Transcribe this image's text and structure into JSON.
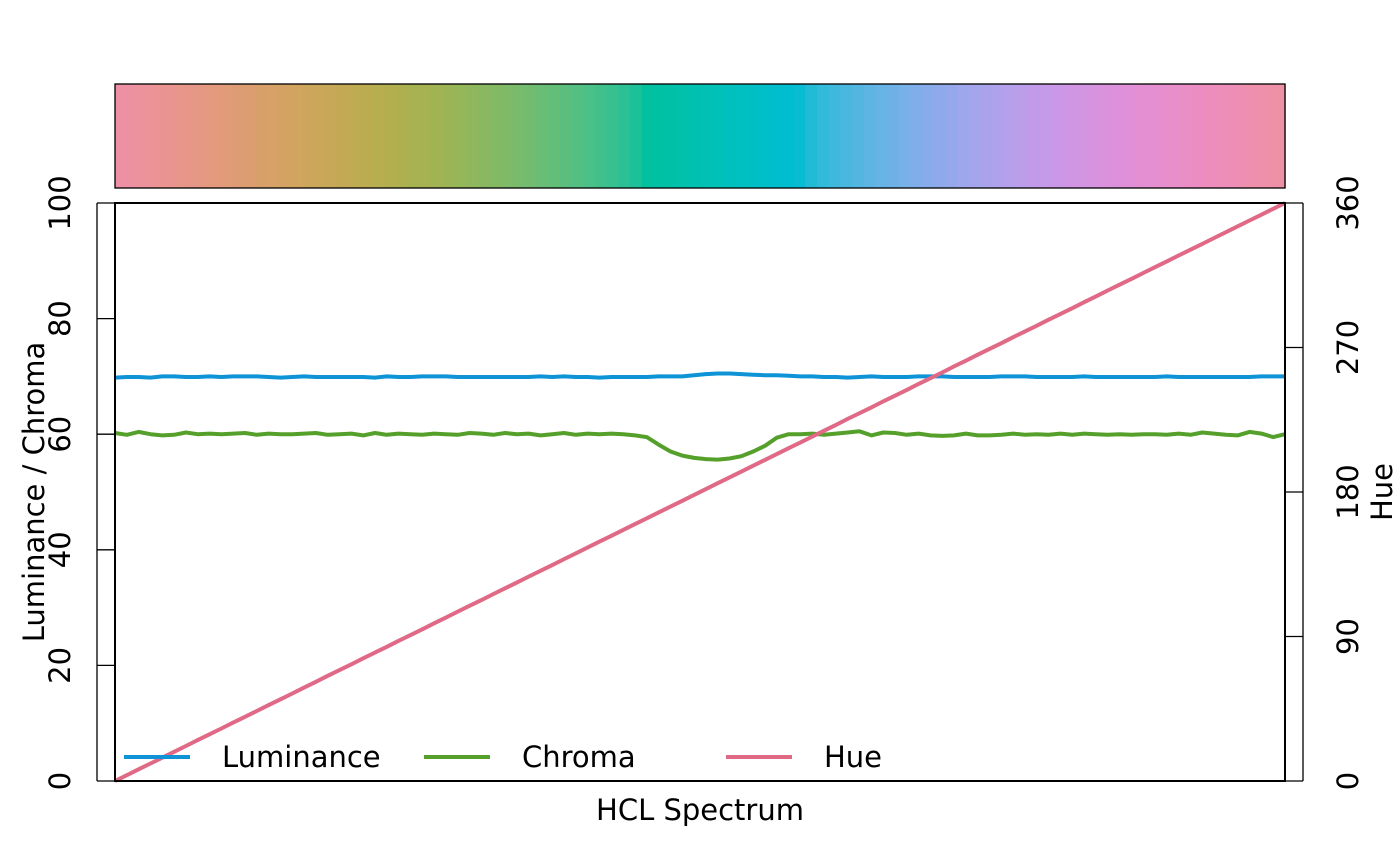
{
  "chart_data": {
    "type": "line",
    "xlabel": "HCL Spectrum",
    "ylabel_left": "Luminance / Chroma",
    "ylabel_right": "Hue",
    "ylim_left": [
      0,
      100
    ],
    "ylim_right": [
      0,
      360
    ],
    "yticks_left": [
      "0",
      "20",
      "40",
      "60",
      "80",
      "100"
    ],
    "yticks_right": [
      "0",
      "90",
      "180",
      "270",
      "360"
    ],
    "grid": false,
    "legend_position": "bottom-left",
    "x_count": 100,
    "series": [
      {
        "name": "Luminance",
        "axis": "left",
        "color": "#0e93d6",
        "values": [
          69.8,
          69.9,
          69.9,
          69.8,
          70.0,
          70.0,
          69.9,
          69.9,
          70.0,
          69.9,
          70.0,
          70.0,
          70.0,
          69.9,
          69.8,
          69.9,
          70.0,
          69.9,
          69.9,
          69.9,
          69.9,
          69.9,
          69.8,
          70.0,
          69.9,
          69.9,
          70.0,
          70.0,
          70.0,
          69.9,
          69.9,
          69.9,
          69.9,
          69.9,
          69.9,
          69.9,
          70.0,
          69.9,
          70.0,
          69.9,
          69.9,
          69.8,
          69.9,
          69.9,
          69.9,
          69.9,
          70.0,
          70.0,
          70.0,
          70.2,
          70.4,
          70.5,
          70.5,
          70.4,
          70.3,
          70.2,
          70.2,
          70.1,
          70.0,
          70.0,
          69.9,
          69.9,
          69.8,
          69.9,
          70.0,
          69.9,
          69.9,
          69.9,
          70.0,
          70.0,
          70.0,
          69.9,
          69.9,
          69.9,
          69.9,
          70.0,
          70.0,
          70.0,
          69.9,
          69.9,
          69.9,
          69.9,
          70.0,
          69.9,
          69.9,
          69.9,
          69.9,
          69.9,
          69.9,
          70.0,
          69.9,
          69.9,
          69.9,
          69.9,
          69.9,
          69.9,
          69.9,
          70.0,
          70.0,
          70.0
        ]
      },
      {
        "name": "Chroma",
        "axis": "left",
        "color": "#55a02a",
        "values": [
          60.2,
          59.9,
          60.4,
          60.0,
          59.8,
          59.9,
          60.3,
          60.0,
          60.1,
          60.0,
          60.1,
          60.2,
          59.9,
          60.1,
          60.0,
          60.0,
          60.1,
          60.2,
          59.9,
          60.0,
          60.1,
          59.8,
          60.2,
          59.9,
          60.1,
          60.0,
          59.9,
          60.1,
          60.0,
          59.9,
          60.2,
          60.1,
          59.9,
          60.2,
          60.0,
          60.1,
          59.8,
          60.0,
          60.2,
          59.9,
          60.1,
          60.0,
          60.1,
          60.0,
          59.8,
          59.5,
          58.2,
          57.0,
          56.3,
          55.9,
          55.7,
          55.6,
          55.8,
          56.2,
          57.0,
          58.0,
          59.4,
          60.0,
          60.0,
          60.1,
          59.9,
          60.1,
          60.3,
          60.5,
          59.8,
          60.3,
          60.2,
          59.9,
          60.1,
          59.8,
          59.7,
          59.8,
          60.1,
          59.8,
          59.8,
          59.9,
          60.1,
          59.9,
          60.0,
          59.9,
          60.1,
          59.9,
          60.1,
          60.0,
          59.9,
          60.0,
          59.9,
          60.0,
          60.0,
          59.9,
          60.1,
          59.9,
          60.3,
          60.1,
          59.9,
          59.8,
          60.4,
          60.1,
          59.5,
          60.0
        ]
      },
      {
        "name": "Hue",
        "axis": "right",
        "color": "#e06a86",
        "values": [
          0,
          3.6,
          7.3,
          10.9,
          14.5,
          18.2,
          21.8,
          25.5,
          29.1,
          32.7,
          36.4,
          40.0,
          43.6,
          47.3,
          50.9,
          54.5,
          58.2,
          61.8,
          65.5,
          69.1,
          72.7,
          76.4,
          80.0,
          83.6,
          87.3,
          90.9,
          94.5,
          98.2,
          101.8,
          105.5,
          109.1,
          112.7,
          116.4,
          120.0,
          123.6,
          127.3,
          130.9,
          134.5,
          138.2,
          141.8,
          145.5,
          149.1,
          152.7,
          156.4,
          160.0,
          163.6,
          167.3,
          170.9,
          174.5,
          178.2,
          181.8,
          185.5,
          189.1,
          192.7,
          196.4,
          200.0,
          203.6,
          207.3,
          210.9,
          214.5,
          218.2,
          221.8,
          225.5,
          229.1,
          232.7,
          236.4,
          240.0,
          243.6,
          247.3,
          250.9,
          254.5,
          258.2,
          261.8,
          265.5,
          269.1,
          272.7,
          276.4,
          280.0,
          283.6,
          287.3,
          290.9,
          294.5,
          298.2,
          301.8,
          305.5,
          309.1,
          312.7,
          316.4,
          320.0,
          323.6,
          327.3,
          330.9,
          334.5,
          338.2,
          341.8,
          345.5,
          349.1,
          352.7,
          356.4,
          360.0
        ]
      }
    ],
    "swatch": {
      "luminance": 70,
      "chroma": 60,
      "hue_start": 0,
      "hue_end": 360,
      "count": 100
    }
  }
}
